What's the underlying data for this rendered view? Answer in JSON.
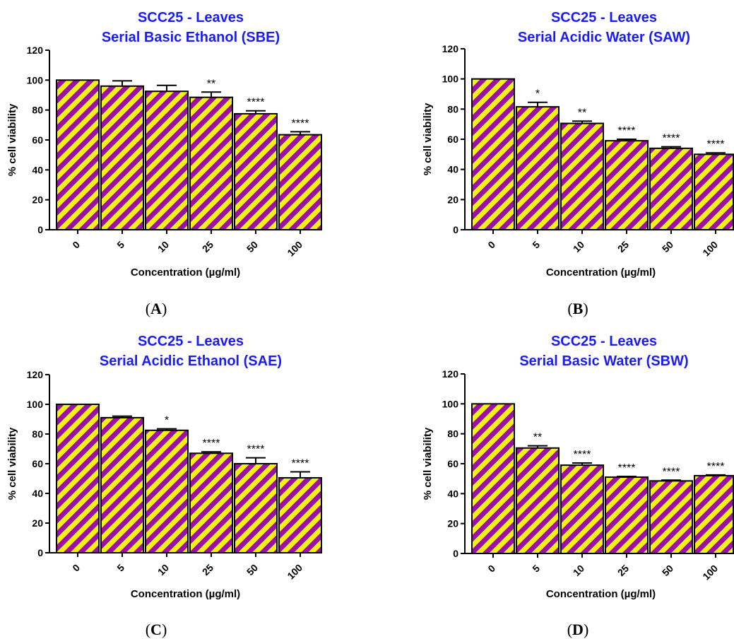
{
  "chart_data": [
    {
      "type": "bar",
      "panel": "A",
      "title_line1": "SCC25 - Leaves",
      "title_line2": "Serial Basic Ethanol (SBE)",
      "xlabel": "Concentration (µg/ml)",
      "ylabel": "% cell viability",
      "categories": [
        "0",
        "5",
        "10",
        "25",
        "50",
        "100"
      ],
      "values": [
        100,
        96,
        92.5,
        88.5,
        77.5,
        63.5
      ],
      "errors": [
        0,
        3.5,
        4,
        3.5,
        2,
        2
      ],
      "significance": [
        "",
        "",
        "",
        "**",
        "****",
        "****"
      ],
      "ylim": [
        0,
        120
      ],
      "yticks": [
        0,
        20,
        40,
        60,
        80,
        100,
        120
      ]
    },
    {
      "type": "bar",
      "panel": "B",
      "title_line1": "SCC25 - Leaves",
      "title_line2": "Serial Acidic Water (SAW)",
      "xlabel": "Concentration (µg/ml)",
      "ylabel": "% cell viability",
      "categories": [
        "0",
        "5",
        "10",
        "25",
        "50",
        "100"
      ],
      "values": [
        100,
        81.5,
        70.5,
        59,
        54,
        50
      ],
      "errors": [
        0,
        3,
        1.5,
        1,
        1,
        1
      ],
      "significance": [
        "",
        "*",
        "**",
        "****",
        "****",
        "****"
      ],
      "ylim": [
        0,
        120
      ],
      "yticks": [
        0,
        20,
        40,
        60,
        80,
        100,
        120
      ]
    },
    {
      "type": "bar",
      "panel": "C",
      "title_line1": "SCC25 - Leaves",
      "title_line2": "Serial Acidic Ethanol (SAE)",
      "xlabel": "Concentration (µg/ml)",
      "ylabel": "% cell viability",
      "categories": [
        "0",
        "5",
        "10",
        "25",
        "50",
        "100"
      ],
      "values": [
        100,
        91,
        82.5,
        67,
        60,
        50.5
      ],
      "errors": [
        0,
        1,
        1,
        1,
        4,
        4
      ],
      "significance": [
        "",
        "",
        "*",
        "****",
        "****",
        "****"
      ],
      "ylim": [
        0,
        120
      ],
      "yticks": [
        0,
        20,
        40,
        60,
        80,
        100,
        120
      ]
    },
    {
      "type": "bar",
      "panel": "D",
      "title_line1": "SCC25 - Leaves",
      "title_line2": "Serial Basic Water (SBW)",
      "xlabel": "Concentration (µg/ml)",
      "ylabel": "% cell viability",
      "categories": [
        "0",
        "5",
        "10",
        "25",
        "50",
        "100"
      ],
      "values": [
        100,
        70.5,
        59,
        51,
        48.5,
        52
      ],
      "errors": [
        0,
        1.5,
        1.5,
        0.5,
        0.5,
        0.5
      ],
      "significance": [
        "",
        "**",
        "****",
        "****",
        "****",
        "****"
      ],
      "ylim": [
        0,
        120
      ],
      "yticks": [
        0,
        20,
        40,
        60,
        80,
        100,
        120
      ]
    }
  ],
  "colors": {
    "title": "#1a1aff",
    "stripe_purple": "#9c0fa8",
    "stripe_yellow": "#f2f216",
    "axis": "#000000"
  }
}
